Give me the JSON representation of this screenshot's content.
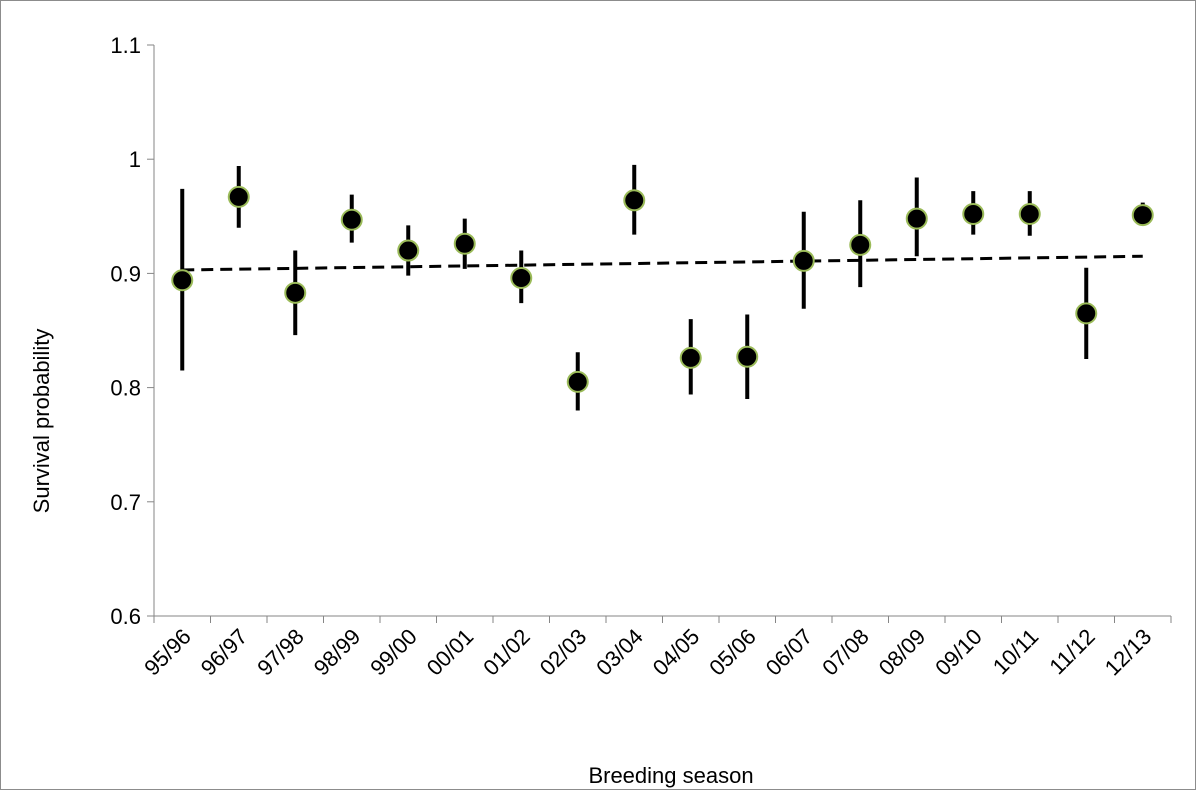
{
  "chart_data": {
    "type": "scatter",
    "title": "",
    "xlabel": "Breeding season",
    "ylabel": "Survival probability",
    "ylim": [
      0.6,
      1.1
    ],
    "yticks": [
      0.6,
      0.7,
      0.8,
      0.9,
      1.0,
      1.1
    ],
    "ytick_labels": [
      "0.6",
      "0.7",
      "0.8",
      "0.9",
      "1",
      "1.1"
    ],
    "categories": [
      "95/96",
      "96/97",
      "97/98",
      "98/99",
      "99/00",
      "00/01",
      "01/02",
      "02/03",
      "03/04",
      "04/05",
      "05/06",
      "06/07",
      "07/08",
      "08/09",
      "09/10",
      "10/11",
      "11/12",
      "12/13"
    ],
    "series": [
      {
        "values": [
          0.894,
          0.967,
          0.883,
          0.947,
          0.92,
          0.926,
          0.896,
          0.805,
          0.964,
          0.826,
          0.827,
          0.911,
          0.925,
          0.948,
          0.952,
          0.952,
          0.865,
          0.951
        ],
        "lower": [
          0.815,
          0.94,
          0.846,
          0.927,
          0.898,
          0.904,
          0.874,
          0.78,
          0.934,
          0.794,
          0.79,
          0.869,
          0.888,
          0.915,
          0.934,
          0.933,
          0.825,
          0.948
        ],
        "upper": [
          0.974,
          0.994,
          0.92,
          0.969,
          0.942,
          0.948,
          0.92,
          0.831,
          0.995,
          0.86,
          0.864,
          0.954,
          0.964,
          0.984,
          0.972,
          0.972,
          0.905,
          0.962
        ],
        "marker_fill": "#000000",
        "marker_edge": "#9bbb59",
        "errorbar_color": "#000000"
      }
    ],
    "trendline": {
      "style": "dashed",
      "color": "#000000",
      "start": 0.903,
      "end": 0.915
    },
    "grid": false,
    "legend": "none"
  }
}
